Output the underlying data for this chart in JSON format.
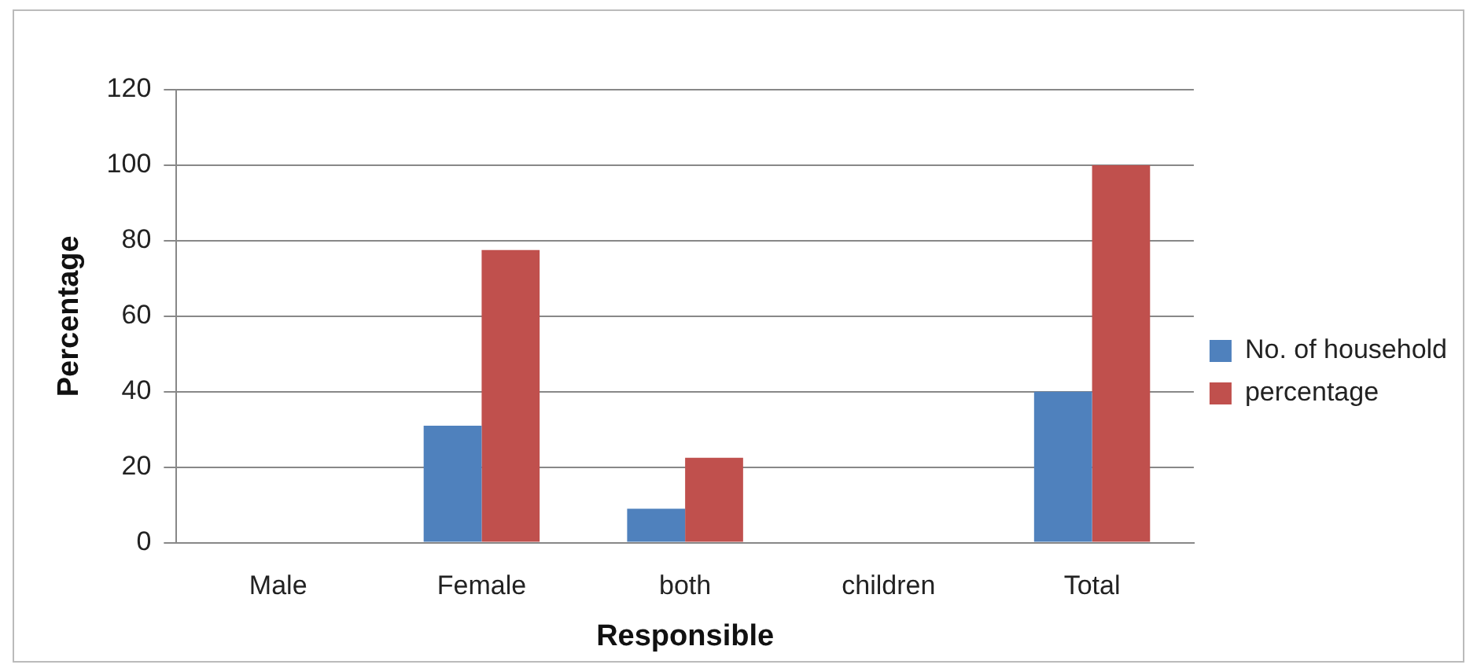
{
  "chart_data": {
    "type": "bar",
    "xlabel": "Responsible",
    "ylabel": "Percentage",
    "categories": [
      "Male",
      "Female",
      "both",
      "children",
      "Total"
    ],
    "series": [
      {
        "name": "No. of household",
        "color": "#4f81bd",
        "values": [
          0,
          31,
          9,
          0,
          40
        ]
      },
      {
        "name": "percentage",
        "color": "#c0504d",
        "values": [
          0,
          77.5,
          22.5,
          0,
          100
        ]
      }
    ],
    "ylim": [
      0,
      120
    ],
    "yticks": [
      0,
      20,
      40,
      60,
      80,
      100,
      120
    ],
    "grid": "y",
    "legend": "right"
  }
}
